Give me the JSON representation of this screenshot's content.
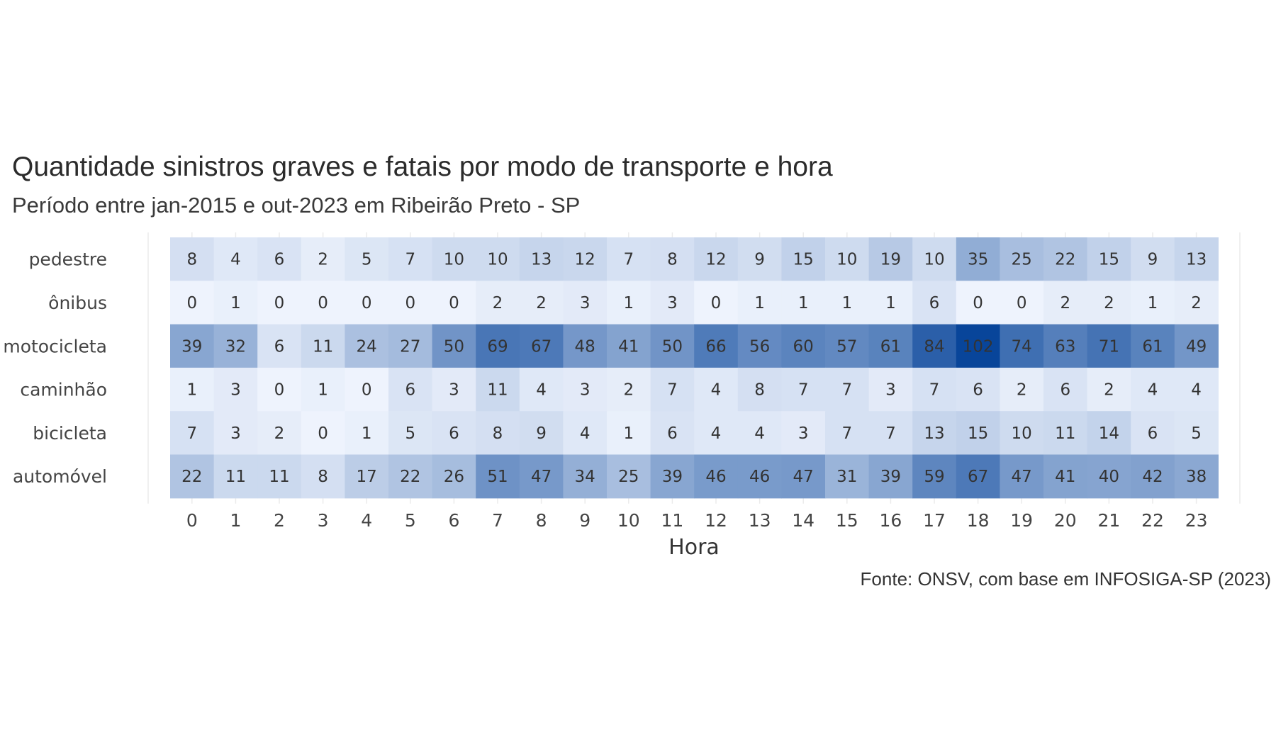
{
  "chart_data": {
    "type": "heatmap",
    "title": "Quantidade sinistros graves e fatais por modo de transporte e hora",
    "subtitle": "Período entre jan-2015 e out-2023 em Ribeirão Preto - SP",
    "caption": "Fonte: ONSV, com base em INFOSIGA-SP (2023)",
    "xlabel": "Hora",
    "ylabel": "",
    "x": [
      "0",
      "1",
      "2",
      "3",
      "4",
      "5",
      "6",
      "7",
      "8",
      "9",
      "10",
      "11",
      "12",
      "13",
      "14",
      "15",
      "16",
      "17",
      "18",
      "19",
      "20",
      "21",
      "22",
      "23"
    ],
    "y": [
      "pedestre",
      "ônibus",
      "motocicleta",
      "caminhão",
      "bicicleta",
      "automóvel"
    ],
    "values": [
      [
        8,
        4,
        6,
        2,
        5,
        7,
        10,
        10,
        13,
        12,
        7,
        8,
        12,
        9,
        15,
        10,
        19,
        10,
        35,
        25,
        22,
        15,
        9,
        13
      ],
      [
        0,
        1,
        0,
        0,
        0,
        0,
        0,
        2,
        2,
        3,
        1,
        3,
        0,
        1,
        1,
        1,
        1,
        6,
        0,
        0,
        2,
        2,
        1,
        2
      ],
      [
        39,
        32,
        6,
        11,
        24,
        27,
        50,
        69,
        67,
        48,
        41,
        50,
        66,
        56,
        60,
        57,
        61,
        84,
        102,
        74,
        63,
        71,
        61,
        49
      ],
      [
        1,
        3,
        0,
        1,
        0,
        6,
        3,
        11,
        4,
        3,
        2,
        7,
        4,
        8,
        7,
        7,
        3,
        7,
        6,
        2,
        6,
        2,
        4,
        4
      ],
      [
        7,
        3,
        2,
        0,
        1,
        5,
        6,
        8,
        9,
        4,
        1,
        6,
        4,
        4,
        3,
        7,
        7,
        13,
        15,
        10,
        11,
        14,
        6,
        5
      ],
      [
        22,
        11,
        11,
        8,
        17,
        22,
        26,
        51,
        47,
        34,
        25,
        39,
        46,
        46,
        47,
        31,
        39,
        59,
        67,
        47,
        41,
        40,
        42,
        38
      ]
    ],
    "color_scale": {
      "low": "#eef3fd",
      "high": "#08459a",
      "min": 0,
      "max": 102
    },
    "grid": true,
    "legend": "none"
  }
}
